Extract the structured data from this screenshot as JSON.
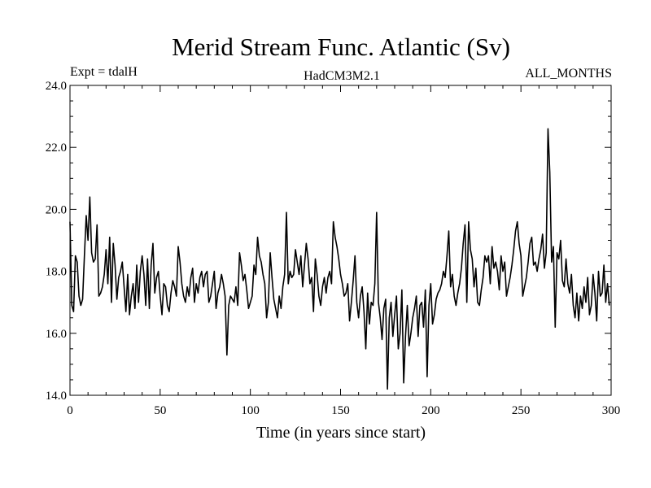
{
  "chart_data": {
    "type": "line",
    "title": "Merid Stream Func. Atlantic (Sv)",
    "subtitle_left": "Expt = tdalH",
    "subtitle_center": "HadCM3M2.1",
    "subtitle_right": "ALL_MONTHS",
    "xlabel": "Time (in years since start)",
    "ylabel": "",
    "xlim": [
      0,
      300
    ],
    "ylim": [
      14.0,
      24.0
    ],
    "x_ticks": [
      0,
      50,
      100,
      150,
      200,
      250,
      300
    ],
    "x_tick_labels": [
      "0",
      "50",
      "100",
      "150",
      "200",
      "250",
      "300"
    ],
    "y_ticks": [
      14.0,
      16.0,
      18.0,
      20.0,
      22.0,
      24.0
    ],
    "y_tick_labels": [
      "14.0",
      "16.0",
      "18.0",
      "20.0",
      "22.0",
      "24.0"
    ],
    "grid": false,
    "series": [
      {
        "name": "Atlantic meridional stream function",
        "x_start": 0,
        "x_step": 1,
        "values": [
          19.6,
          16.9,
          16.7,
          18.5,
          18.3,
          17.2,
          16.9,
          17.1,
          18.5,
          19.8,
          19.0,
          20.4,
          18.6,
          18.3,
          18.4,
          19.5,
          17.2,
          17.3,
          17.5,
          17.9,
          18.7,
          17.6,
          19.1,
          17.0,
          18.9,
          18.2,
          17.1,
          17.8,
          18.0,
          18.3,
          17.5,
          16.7,
          17.9,
          16.6,
          17.2,
          17.6,
          16.8,
          18.2,
          17.0,
          18.0,
          18.5,
          17.9,
          16.9,
          18.4,
          16.8,
          18.2,
          18.9,
          17.3,
          17.8,
          18.0,
          17.2,
          16.6,
          17.6,
          17.5,
          16.9,
          16.7,
          17.3,
          17.7,
          17.5,
          17.2,
          18.8,
          18.3,
          17.6,
          17.2,
          17.0,
          17.5,
          17.2,
          17.8,
          18.1,
          17.0,
          17.6,
          17.3,
          17.8,
          18.0,
          17.5,
          17.9,
          18.0,
          17.0,
          17.2,
          17.6,
          18.0,
          16.8,
          17.3,
          17.5,
          17.9,
          17.6,
          17.2,
          15.3,
          16.9,
          17.2,
          17.1,
          17.0,
          17.5,
          16.9,
          18.6,
          18.2,
          17.7,
          17.9,
          17.4,
          16.8,
          17.0,
          17.2,
          18.2,
          17.9,
          19.1,
          18.5,
          18.3,
          17.9,
          17.6,
          16.5,
          17.0,
          18.6,
          17.8,
          17.1,
          16.8,
          16.5,
          17.2,
          16.8,
          17.5,
          17.9,
          19.9,
          17.6,
          18.0,
          17.8,
          17.9,
          18.7,
          18.3,
          17.9,
          18.5,
          17.5,
          18.2,
          18.9,
          18.4,
          17.6,
          17.8,
          16.7,
          18.4,
          17.9,
          17.2,
          16.9,
          17.5,
          17.8,
          17.3,
          17.8,
          18.0,
          17.6,
          19.6,
          19.1,
          18.8,
          18.4,
          17.9,
          17.6,
          17.2,
          17.3,
          17.6,
          16.4,
          17.0,
          17.7,
          18.5,
          17.0,
          16.5,
          17.2,
          17.5,
          16.7,
          15.5,
          17.3,
          16.3,
          17.0,
          16.9,
          17.6,
          19.9,
          17.0,
          16.5,
          15.8,
          16.8,
          17.1,
          14.2,
          16.5,
          17.0,
          15.9,
          16.6,
          17.2,
          15.5,
          16.0,
          17.4,
          14.4,
          15.9,
          16.9,
          15.6,
          16.0,
          16.5,
          16.8,
          17.2,
          15.9,
          16.9,
          17.0,
          16.2,
          17.4,
          14.6,
          16.9,
          17.6,
          16.3,
          16.6,
          17.1,
          17.3,
          17.4,
          17.6,
          18.0,
          17.8,
          18.5,
          19.3,
          17.5,
          17.9,
          17.2,
          16.9,
          17.3,
          17.6,
          18.1,
          18.9,
          19.5,
          17.0,
          19.6,
          18.7,
          18.4,
          17.5,
          18.1,
          17.0,
          16.9,
          17.4,
          17.8,
          18.5,
          18.3,
          18.5,
          17.6,
          18.8,
          18.1,
          18.3,
          18.0,
          17.4,
          18.5,
          18.0,
          18.3,
          17.2,
          17.5,
          17.8,
          18.2,
          18.7,
          19.3,
          19.6,
          18.9,
          18.5,
          17.2,
          17.5,
          17.8,
          18.3,
          18.9,
          19.1,
          18.2,
          18.3,
          18.0,
          18.4,
          18.7,
          19.2,
          18.1,
          18.6,
          22.6,
          21.2,
          18.3,
          18.8,
          16.2,
          18.6,
          18.4,
          19.0,
          17.7,
          17.5,
          18.4,
          17.6,
          17.3,
          17.9,
          16.9,
          16.5,
          17.3,
          16.4,
          17.2,
          16.8,
          17.5,
          17.0,
          17.8,
          16.6,
          16.9,
          17.9,
          17.3,
          16.4,
          18.0,
          17.2,
          17.3,
          18.2,
          17.0,
          17.6,
          16.9
        ]
      }
    ]
  }
}
